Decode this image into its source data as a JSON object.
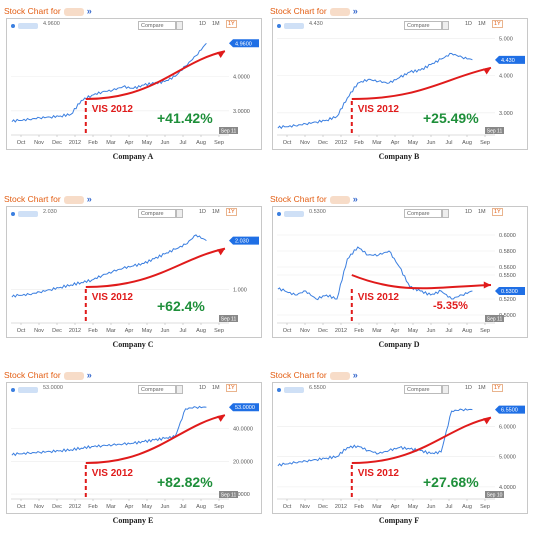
{
  "header_title": "Stock Chart for",
  "compare_label": "Compare",
  "range_options": [
    "1D",
    "1M",
    "1Y"
  ],
  "selected_range": "1Y",
  "event_label": "VIS 2012",
  "chart_data": [
    {
      "type": "line",
      "caption": "Company A",
      "price": "4.9600",
      "current_label": "4.9600",
      "xticks": [
        "Oct",
        "Nov",
        "Dec",
        "2012",
        "Feb",
        "Mar",
        "Apr",
        "May",
        "Jun",
        "Jul",
        "Aug",
        "Sep"
      ],
      "ytick_labels": [
        "4.0000",
        "3.0000"
      ],
      "ytick_values": [
        4.0,
        3.0
      ],
      "ylim": [
        2.3,
        5.2
      ],
      "end_badge": "Sep 11",
      "event_x": 3.6,
      "change": "+41.42%",
      "change_color": "#1e8f3a",
      "values": [
        2.7,
        2.72,
        2.75,
        2.8,
        2.82,
        2.85,
        2.9,
        3.3,
        3.45,
        3.55,
        3.6,
        3.7,
        3.65,
        3.75,
        3.8,
        3.85,
        4.0,
        4.3,
        4.6,
        4.96
      ]
    },
    {
      "type": "line",
      "caption": "Company B",
      "price": "4.430",
      "current_label": "4.430",
      "xticks": [
        "Oct",
        "Nov",
        "Dec",
        "2012",
        "Feb",
        "Mar",
        "Apr",
        "May",
        "Jun",
        "Jul",
        "Aug",
        "Sep"
      ],
      "ytick_labels": [
        "5.000",
        "4.000",
        "3.000"
      ],
      "ytick_values": [
        5.0,
        4.0,
        3.0
      ],
      "ylim": [
        2.4,
        5.1
      ],
      "end_badge": "Sep 11",
      "event_x": 3.6,
      "change": "+25.49%",
      "change_color": "#1e8f3a",
      "values": [
        2.6,
        2.62,
        2.65,
        2.7,
        2.75,
        2.8,
        2.9,
        3.4,
        3.8,
        3.9,
        3.85,
        3.8,
        3.95,
        4.1,
        4.15,
        4.3,
        4.45,
        4.6,
        4.5,
        4.43
      ]
    },
    {
      "type": "line",
      "caption": "Company C",
      "price": "2.030",
      "current_label": "2.030",
      "xticks": [
        "Oct",
        "Nov",
        "Dec",
        "2012",
        "Feb",
        "Mar",
        "Apr",
        "May",
        "Jun",
        "Jul",
        "Aug",
        "Sep"
      ],
      "ytick_labels": [
        "1.000"
      ],
      "ytick_values": [
        1.0
      ],
      "ylim": [
        0.3,
        2.4
      ],
      "end_badge": "Sep 11",
      "event_x": 3.6,
      "change": "+62.4%",
      "change_color": "#1e8f3a",
      "values": [
        0.85,
        0.88,
        0.9,
        0.95,
        1.0,
        1.05,
        1.1,
        1.15,
        1.2,
        1.3,
        1.38,
        1.45,
        1.5,
        1.55,
        1.65,
        1.75,
        1.85,
        1.95,
        2.15,
        2.03
      ]
    },
    {
      "type": "line",
      "caption": "Company D",
      "price": "0.5300",
      "current_label": "0.5300",
      "xticks": [
        "Oct",
        "Nov",
        "Dec",
        "2012",
        "Feb",
        "Mar",
        "Apr",
        "May",
        "Jun",
        "Jul",
        "Aug",
        "Sep"
      ],
      "ytick_labels": [
        "0.6000",
        "0.5800",
        "0.5600",
        "0.5500",
        "0.5200",
        "0.5000"
      ],
      "ytick_values": [
        0.6,
        0.58,
        0.56,
        0.55,
        0.52,
        0.5
      ],
      "ylim": [
        0.49,
        0.615
      ],
      "end_badge": "Sep 11",
      "event_x": 3.6,
      "change": "-5.35%",
      "change_color": "#e01b1b",
      "values": [
        0.535,
        0.53,
        0.525,
        0.53,
        0.52,
        0.525,
        0.52,
        0.57,
        0.585,
        0.575,
        0.575,
        0.58,
        0.56,
        0.535,
        0.53,
        0.525,
        0.53,
        0.52,
        0.525,
        0.53
      ]
    },
    {
      "type": "line",
      "caption": "Company E",
      "price": "53.0000",
      "current_label": "53.0000",
      "xticks": [
        "Oct",
        "Nov",
        "Dec",
        "2012",
        "Feb",
        "Mar",
        "Apr",
        "May",
        "Jun",
        "Jul",
        "Aug",
        "Sep"
      ],
      "ytick_labels": [
        "40.0000",
        "20.0000",
        "0.0000"
      ],
      "ytick_values": [
        40.0,
        20.0,
        0.0
      ],
      "ylim": [
        -3,
        58
      ],
      "end_badge": "Sep 11",
      "event_x": 3.6,
      "change": "+82.82%",
      "change_color": "#1e8f3a",
      "values": [
        24,
        24.5,
        25,
        25.5,
        26,
        26.5,
        27,
        28,
        29,
        29.5,
        30,
        30.5,
        31,
        32,
        33,
        34,
        35,
        52,
        53,
        53
      ]
    },
    {
      "type": "line",
      "caption": "Company F",
      "price": "6.5500",
      "current_label": "6.5500",
      "xticks": [
        "Oct",
        "Nov",
        "Dec",
        "2012",
        "Feb",
        "Mar",
        "Apr",
        "May",
        "Jun",
        "Jul",
        "Aug",
        "Sep"
      ],
      "ytick_labels": [
        "6.0000",
        "5.0000",
        "4.0000"
      ],
      "ytick_values": [
        6.0,
        5.0,
        4.0
      ],
      "ylim": [
        3.6,
        6.9
      ],
      "end_badge": "Sep 10",
      "event_x": 3.6,
      "change": "+27.68%",
      "change_color": "#1e8f3a",
      "values": [
        4.7,
        4.75,
        4.8,
        4.85,
        4.9,
        4.95,
        5.0,
        5.3,
        5.35,
        5.2,
        5.1,
        5.2,
        5.3,
        5.25,
        5.2,
        5.1,
        5.15,
        6.5,
        6.55,
        6.55
      ]
    }
  ]
}
